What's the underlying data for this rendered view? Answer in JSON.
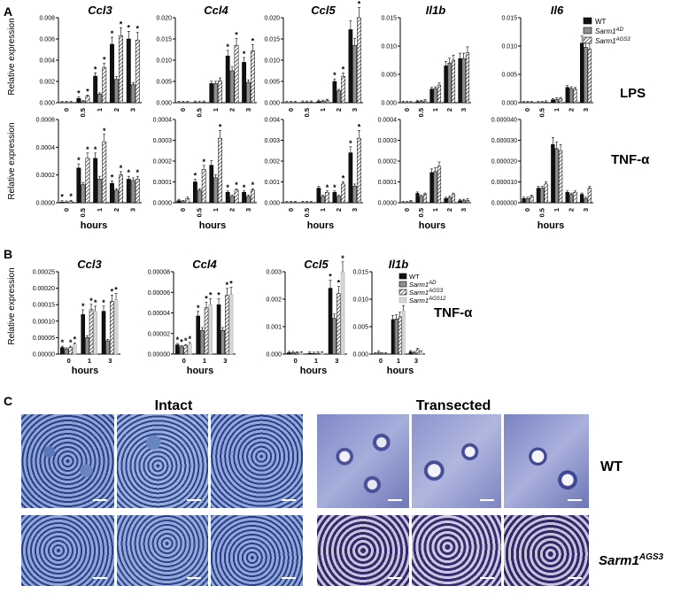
{
  "panel_labels": {
    "A": "A",
    "B": "B",
    "C": "C"
  },
  "conditions": {
    "lps": "LPS",
    "tnf": "TNF-α"
  },
  "hours_label": "hours",
  "ylabel": "Relative expression",
  "legend_A": [
    "WT",
    "Sarm1AD",
    "Sarm1AGS3"
  ],
  "legend_B": [
    "WT",
    "Sarm1AD",
    "Sarm1AGS3",
    "Sarm1AGS12"
  ],
  "colors": {
    "wt": "#111111",
    "ad": "#8f8f8f",
    "ags3": "#ffffff",
    "ags12": "#d6d6d6"
  },
  "panel_C": {
    "intact": "Intact",
    "transected": "Transected",
    "row1": "WT",
    "row2": "Sarm1AGS3"
  },
  "chart_data": [
    {
      "id": "A-LPS-Ccl3",
      "type": "bar",
      "title": "Ccl3",
      "categories": [
        "0",
        "0.5",
        "1",
        "2",
        "3"
      ],
      "ylim": [
        0,
        0.008
      ],
      "yticks": [
        "0.000",
        "0.002",
        "0.004",
        "0.006",
        "0.008"
      ],
      "series": [
        {
          "name": "WT",
          "values": [
            0,
            0.0004,
            0.0025,
            0.0055,
            0.006
          ]
        },
        {
          "name": "Sarm1AD",
          "values": [
            0,
            0.0001,
            0.0008,
            0.0022,
            0.0017
          ]
        },
        {
          "name": "Sarm1AGS3",
          "values": [
            0,
            0.0006,
            0.0033,
            0.0063,
            0.0059
          ]
        }
      ],
      "stars": [
        [
          false,
          false,
          false
        ],
        [
          true,
          false,
          true
        ],
        [
          true,
          false,
          true
        ],
        [
          true,
          false,
          true
        ],
        [
          true,
          false,
          true
        ]
      ]
    },
    {
      "id": "A-LPS-Ccl4",
      "type": "bar",
      "title": "Ccl4",
      "categories": [
        "0",
        "0.5",
        "1",
        "2",
        "3"
      ],
      "ylim": [
        0,
        0.02
      ],
      "yticks": [
        "0.000",
        "0.005",
        "0.010",
        "0.015",
        "0.020"
      ],
      "series": [
        {
          "name": "WT",
          "values": [
            0,
            0.0001,
            0.0045,
            0.011,
            0.0095
          ]
        },
        {
          "name": "Sarm1AD",
          "values": [
            0,
            0,
            0.0045,
            0.0075,
            0.0048
          ]
        },
        {
          "name": "Sarm1AGS3",
          "values": [
            0,
            0.0001,
            0.0052,
            0.0135,
            0.0122
          ]
        }
      ],
      "stars": [
        [
          false,
          false,
          false
        ],
        [
          false,
          false,
          false
        ],
        [
          false,
          false,
          false
        ],
        [
          true,
          false,
          true
        ],
        [
          true,
          false,
          true
        ]
      ]
    },
    {
      "id": "A-LPS-Ccl5",
      "type": "bar",
      "title": "Ccl5",
      "categories": [
        "0",
        "0.5",
        "1",
        "2",
        "3"
      ],
      "ylim": [
        0,
        0.02
      ],
      "yticks": [
        "0.000",
        "0.005",
        "0.010",
        "0.015",
        "0.020"
      ],
      "series": [
        {
          "name": "WT",
          "values": [
            0,
            0.0001,
            0.0003,
            0.005,
            0.0172
          ]
        },
        {
          "name": "Sarm1AD",
          "values": [
            0,
            0.0001,
            0.0003,
            0.0028,
            0.0135
          ]
        },
        {
          "name": "Sarm1AGS3",
          "values": [
            0,
            0.0001,
            0.0005,
            0.0062,
            0.02
          ]
        }
      ],
      "stars": [
        [
          false,
          false,
          false
        ],
        [
          false,
          false,
          false
        ],
        [
          false,
          false,
          false
        ],
        [
          true,
          false,
          true
        ],
        [
          false,
          false,
          true
        ]
      ]
    },
    {
      "id": "A-LPS-Il1b",
      "type": "bar",
      "title": "Il1b",
      "categories": [
        "0",
        "0.5",
        "1",
        "2",
        "3"
      ],
      "ylim": [
        0,
        0.015
      ],
      "yticks": [
        "0.000",
        "0.005",
        "0.010",
        "0.015"
      ],
      "series": [
        {
          "name": "WT",
          "values": [
            0,
            0.0002,
            0.0024,
            0.0065,
            0.0078
          ]
        },
        {
          "name": "Sarm1AD",
          "values": [
            0,
            0.0002,
            0.0025,
            0.007,
            0.0078
          ]
        },
        {
          "name": "Sarm1AGS3",
          "values": [
            0,
            0.0003,
            0.0031,
            0.0075,
            0.0088
          ]
        }
      ],
      "stars": [
        [
          false,
          false,
          false
        ],
        [
          false,
          false,
          false
        ],
        [
          false,
          false,
          false
        ],
        [
          false,
          false,
          false
        ],
        [
          false,
          false,
          false
        ]
      ]
    },
    {
      "id": "A-LPS-Il6",
      "type": "bar",
      "title": "Il6",
      "categories": [
        "0",
        "0.5",
        "1",
        "2",
        "3"
      ],
      "ylim": [
        0,
        0.015
      ],
      "yticks": [
        "0.000",
        "0.005",
        "0.010",
        "0.015"
      ],
      "series": [
        {
          "name": "WT",
          "values": [
            0,
            0,
            0.0005,
            0.0027,
            0.0105
          ]
        },
        {
          "name": "Sarm1AD",
          "values": [
            0,
            0,
            0.0006,
            0.0025,
            0.0098
          ]
        },
        {
          "name": "Sarm1AGS3",
          "values": [
            0,
            0.0001,
            0.0007,
            0.0024,
            0.0095
          ]
        }
      ],
      "stars": [
        [
          false,
          false,
          false
        ],
        [
          false,
          false,
          false
        ],
        [
          false,
          false,
          false
        ],
        [
          false,
          false,
          false
        ],
        [
          false,
          false,
          false
        ]
      ]
    },
    {
      "id": "A-TNF-Ccl3",
      "type": "bar",
      "title": "",
      "categories": [
        "0",
        "0.5",
        "1",
        "2",
        "3"
      ],
      "ylim": [
        0,
        0.0006
      ],
      "yticks": [
        "0.0000",
        "0.0002",
        "0.0004",
        "0.0006"
      ],
      "series": [
        {
          "name": "WT",
          "values": [
            5e-06,
            0.00025,
            0.00032,
            0.00014,
            0.00017
          ]
        },
        {
          "name": "Sarm1AD",
          "values": [
            3e-06,
            0.00013,
            0.00017,
            9e-05,
            0.00016
          ]
        },
        {
          "name": "Sarm1AGS3",
          "values": [
            8e-06,
            0.00032,
            0.00044,
            0.0002,
            0.00017
          ]
        }
      ],
      "stars": [
        [
          true,
          false,
          true
        ],
        [
          true,
          false,
          true
        ],
        [
          true,
          false,
          true
        ],
        [
          true,
          false,
          true
        ],
        [
          true,
          false,
          true
        ]
      ]
    },
    {
      "id": "A-TNF-Ccl4",
      "type": "bar",
      "title": "",
      "categories": [
        "0",
        "0.5",
        "1",
        "2",
        "3"
      ],
      "ylim": [
        0,
        0.0004
      ],
      "yticks": [
        "0.0000",
        "0.0001",
        "0.0002",
        "0.0003",
        "0.0004"
      ],
      "series": [
        {
          "name": "WT",
          "values": [
            1e-05,
            0.0001,
            0.00018,
            5e-05,
            5e-05
          ]
        },
        {
          "name": "Sarm1AD",
          "values": [
            5e-06,
            6e-05,
            0.00012,
            3e-05,
            3e-05
          ]
        },
        {
          "name": "Sarm1AGS3",
          "values": [
            2e-05,
            0.00016,
            0.00031,
            6e-05,
            6e-05
          ]
        }
      ],
      "stars": [
        [
          false,
          false,
          false
        ],
        [
          true,
          false,
          true
        ],
        [
          false,
          false,
          true
        ],
        [
          true,
          false,
          true
        ],
        [
          true,
          false,
          true
        ]
      ]
    },
    {
      "id": "A-TNF-Ccl5",
      "type": "bar",
      "title": "",
      "categories": [
        "0",
        "0.5",
        "1",
        "2",
        "3"
      ],
      "ylim": [
        0,
        0.004
      ],
      "yticks": [
        "0.000",
        "0.001",
        "0.002",
        "0.003",
        "0.004"
      ],
      "series": [
        {
          "name": "WT",
          "values": [
            0,
            0,
            0.0007,
            0.0005,
            0.0024
          ]
        },
        {
          "name": "Sarm1AD",
          "values": [
            0,
            0,
            0.0003,
            0.0003,
            0.0008
          ]
        },
        {
          "name": "Sarm1AGS3",
          "values": [
            0,
            0,
            0.0005,
            0.0009,
            0.0031
          ]
        }
      ],
      "stars": [
        [
          false,
          false,
          false
        ],
        [
          false,
          false,
          false
        ],
        [
          false,
          false,
          true
        ],
        [
          true,
          false,
          true
        ],
        [
          true,
          false,
          true
        ]
      ]
    },
    {
      "id": "A-TNF-Il1b",
      "type": "bar",
      "title": "",
      "categories": [
        "0",
        "0.5",
        "1",
        "2",
        "3"
      ],
      "ylim": [
        0,
        0.0004
      ],
      "yticks": [
        "0.0000",
        "0.0001",
        "0.0002",
        "0.0003",
        "0.0004"
      ],
      "series": [
        {
          "name": "WT",
          "values": [
            0,
            4.5e-05,
            0.000145,
            2e-05,
            1e-05
          ]
        },
        {
          "name": "Sarm1AD",
          "values": [
            0,
            3e-05,
            0.00015,
            2.5e-05,
            1e-05
          ]
        },
        {
          "name": "Sarm1AGS3",
          "values": [
            5e-06,
            4e-05,
            0.000175,
            4e-05,
            1.2e-05
          ]
        }
      ],
      "stars": [
        [
          false,
          false,
          false
        ],
        [
          false,
          false,
          false
        ],
        [
          false,
          false,
          false
        ],
        [
          false,
          false,
          false
        ],
        [
          false,
          false,
          false
        ]
      ]
    },
    {
      "id": "A-TNF-Il6",
      "type": "bar",
      "title": "",
      "categories": [
        "0",
        "0.5",
        "1",
        "2",
        "3"
      ],
      "ylim": [
        0,
        4e-05
      ],
      "yticks": [
        "0.000000",
        "0.000010",
        "0.000020",
        "0.000030",
        "0.000040"
      ],
      "series": [
        {
          "name": "WT",
          "values": [
            2e-06,
            7e-06,
            2.8e-05,
            5e-06,
            4e-06
          ]
        },
        {
          "name": "Sarm1AD",
          "values": [
            2e-06,
            7e-06,
            2.6e-05,
            4e-06,
            2e-06
          ]
        },
        {
          "name": "Sarm1AGS3",
          "values": [
            3e-06,
            9e-06,
            2.5e-05,
            5e-06,
            7e-06
          ]
        }
      ],
      "stars": [
        [
          false,
          false,
          false
        ],
        [
          false,
          false,
          false
        ],
        [
          false,
          false,
          false
        ],
        [
          false,
          false,
          false
        ],
        [
          false,
          false,
          false
        ]
      ]
    },
    {
      "id": "B-Ccl3",
      "type": "bar",
      "title": "Ccl3",
      "categories": [
        "0",
        "1",
        "3"
      ],
      "ylim": [
        0,
        0.00025
      ],
      "yticks": [
        "0.00000",
        "0.00005",
        "0.00010",
        "0.00015",
        "0.00020",
        "0.00025"
      ],
      "series": [
        {
          "name": "WT",
          "values": [
            2e-05,
            0.00012,
            0.00013
          ]
        },
        {
          "name": "Sarm1AD",
          "values": [
            1.5e-05,
            5e-05,
            4e-05
          ]
        },
        {
          "name": "Sarm1AGS3",
          "values": [
            2e-05,
            0.000135,
            0.00016
          ]
        },
        {
          "name": "Sarm1AGS12",
          "values": [
            3e-05,
            0.00013,
            0.000165
          ]
        }
      ],
      "stars": [
        [
          true,
          false,
          true,
          true
        ],
        [
          true,
          false,
          true,
          true
        ],
        [
          true,
          false,
          true,
          true
        ]
      ]
    },
    {
      "id": "B-Ccl4",
      "type": "bar",
      "title": "Ccl4",
      "categories": [
        "0",
        "1",
        "3"
      ],
      "ylim": [
        0,
        8e-05
      ],
      "yticks": [
        "0.00000",
        "0.00002",
        "0.00004",
        "0.00006",
        "0.00008"
      ],
      "series": [
        {
          "name": "WT",
          "values": [
            9e-06,
            3.7e-05,
            4.8e-05
          ]
        },
        {
          "name": "Sarm1AD",
          "values": [
            7e-06,
            2.3e-05,
            2.3e-05
          ]
        },
        {
          "name": "Sarm1AGS3",
          "values": [
            8e-06,
            4.5e-05,
            5.7e-05
          ]
        },
        {
          "name": "Sarm1AGS12",
          "values": [
            1e-05,
            4.8e-05,
            5.8e-05
          ]
        }
      ],
      "stars": [
        [
          true,
          true,
          true,
          true
        ],
        [
          true,
          false,
          true,
          true
        ],
        [
          true,
          false,
          true,
          true
        ]
      ]
    },
    {
      "id": "B-Ccl5",
      "type": "bar",
      "title": "Ccl5",
      "categories": [
        "0",
        "1",
        "3"
      ],
      "ylim": [
        0,
        0.003
      ],
      "yticks": [
        "0.000",
        "0.001",
        "0.002",
        "0.003"
      ],
      "series": [
        {
          "name": "WT",
          "values": [
            5e-05,
            3e-05,
            0.0024
          ]
        },
        {
          "name": "Sarm1AD",
          "values": [
            5e-05,
            2e-05,
            0.0013
          ]
        },
        {
          "name": "Sarm1AGS3",
          "values": [
            4e-05,
            3e-05,
            0.0022
          ]
        },
        {
          "name": "Sarm1AGS12",
          "values": [
            4e-05,
            4e-05,
            0.003
          ]
        }
      ],
      "stars": [
        [
          false,
          false,
          false,
          false
        ],
        [
          false,
          false,
          false,
          false
        ],
        [
          true,
          false,
          true,
          true
        ]
      ]
    },
    {
      "id": "B-Il1b",
      "type": "bar",
      "title": "Il1b",
      "categories": [
        "0",
        "1",
        "3"
      ],
      "ylim": [
        0,
        0.015
      ],
      "yticks": [
        "0.000",
        "0.005",
        "0.010",
        "0.015"
      ],
      "series": [
        {
          "name": "WT",
          "values": [
            0,
            0.0063,
            0.0004
          ]
        },
        {
          "name": "Sarm1AD",
          "values": [
            0.0003,
            0.0064,
            0.0002
          ]
        },
        {
          "name": "Sarm1AGS3",
          "values": [
            0,
            0.0068,
            0.0008
          ]
        },
        {
          "name": "Sarm1AGS12",
          "values": [
            0,
            0.0079,
            0.0003
          ]
        }
      ],
      "stars": [
        [
          false,
          false,
          false,
          false
        ],
        [
          false,
          false,
          false,
          false
        ],
        [
          false,
          false,
          false,
          false
        ]
      ]
    }
  ]
}
